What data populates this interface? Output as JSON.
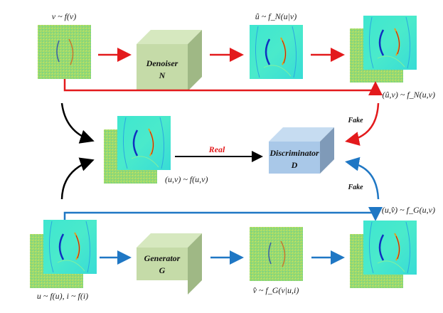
{
  "labels": {
    "v_dist": "v ~ f(v)",
    "u_hat_cond": "û ~ f_N(u|v)",
    "u_hat_joint": "(û,v) ~ f_N(u,v)",
    "real_joint": "(u,v) ~ f(u,v)",
    "v_hat_joint": "(u,v̂) ~ f_G(u,v)",
    "u_i_dist": "u ~ f(u), i ~ f(i)",
    "v_hat_cond": "v̂ ~ f_G(v|u,i)",
    "real": "Real",
    "fake_top": "Fake",
    "fake_bottom": "Fake"
  },
  "blocks": {
    "denoiser": {
      "name": "Denoiser",
      "symbol": "N"
    },
    "discriminator": {
      "name": "Discriminator",
      "symbol": "D"
    },
    "generator": {
      "name": "Generator",
      "symbol": "G"
    }
  },
  "colors": {
    "red_path": "#e31a1c",
    "blue_path": "#1f77c4",
    "black_path": "#000000",
    "green_block": "#c5dba8",
    "blue_block": "#a9c8e8"
  }
}
